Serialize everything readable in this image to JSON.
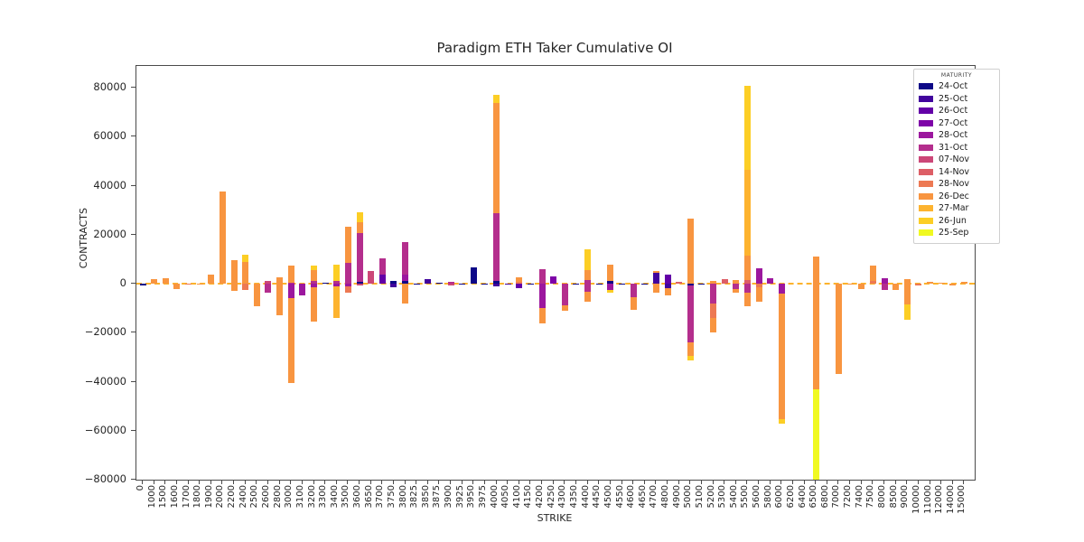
{
  "title": "Paradigm ETH Taker Cumulative OI",
  "axes": {
    "xlabel": "STRIKE",
    "ylabel": "CONTRACTS"
  },
  "legend": {
    "title": "MATURITY"
  },
  "chart_data": {
    "type": "bar",
    "stacked": true,
    "title": "Paradigm ETH Taker Cumulative OI",
    "xlabel": "STRIKE",
    "ylabel": "CONTRACTS",
    "ylim": [
      -80000,
      88000
    ],
    "yticks": [
      -80000,
      -60000,
      -40000,
      -20000,
      0,
      20000,
      40000,
      60000,
      80000
    ],
    "grid": false,
    "zero_line": {
      "style": "dashed",
      "color": "#fcb32c"
    },
    "legend_position": "upper right",
    "series_colors": {
      "24-Oct": "#0d0887",
      "25-Oct": "#41049d",
      "26-Oct": "#6300a7",
      "27-Oct": "#7e03a8",
      "28-Oct": "#9c179e",
      "31-Oct": "#b42e8d",
      "07-Nov": "#cc4778",
      "14-Nov": "#dd5e66",
      "28-Nov": "#ed7953",
      "26-Dec": "#f89540",
      "27-Mar": "#fdb32f",
      "26-Jun": "#fcce25",
      "25-Sep": "#f0f921"
    },
    "maturities": [
      "24-Oct",
      "25-Oct",
      "26-Oct",
      "27-Oct",
      "28-Oct",
      "31-Oct",
      "07-Nov",
      "14-Nov",
      "28-Nov",
      "26-Dec",
      "27-Mar",
      "26-Jun",
      "25-Sep"
    ],
    "categories": [
      "0",
      "1000",
      "1500",
      "1600",
      "1700",
      "1800",
      "1900",
      "2000",
      "2200",
      "2400",
      "2500",
      "2600",
      "2800",
      "3000",
      "3100",
      "3200",
      "3300",
      "3400",
      "3500",
      "3600",
      "3650",
      "3700",
      "3750",
      "3800",
      "3825",
      "3850",
      "3875",
      "3900",
      "3925",
      "3950",
      "3975",
      "4000",
      "4050",
      "4100",
      "4150",
      "4200",
      "4250",
      "4300",
      "4350",
      "4400",
      "4450",
      "4500",
      "4550",
      "4600",
      "4650",
      "4700",
      "4800",
      "4900",
      "5000",
      "5100",
      "5200",
      "5300",
      "5400",
      "5500",
      "5600",
      "5800",
      "6000",
      "6200",
      "6400",
      "6500",
      "6800",
      "7000",
      "7200",
      "7400",
      "7500",
      "8000",
      "8500",
      "9000",
      "10000",
      "11000",
      "12000",
      "14000",
      "15000"
    ],
    "bars": [
      {
        "strike": "0",
        "pos": [],
        "neg": [
          [
            "24-Oct",
            -600
          ]
        ]
      },
      {
        "strike": "1000",
        "pos": [
          [
            "26-Dec",
            1700
          ]
        ],
        "neg": []
      },
      {
        "strike": "1500",
        "pos": [
          [
            "26-Dec",
            2100
          ]
        ],
        "neg": []
      },
      {
        "strike": "1600",
        "pos": [],
        "neg": [
          [
            "26-Dec",
            -2300
          ]
        ]
      },
      {
        "strike": "1700",
        "pos": [],
        "neg": [
          [
            "28-Nov",
            -400
          ]
        ]
      },
      {
        "strike": "1800",
        "pos": [],
        "neg": [
          [
            "26-Dec",
            -400
          ]
        ]
      },
      {
        "strike": "1900",
        "pos": [
          [
            "26-Dec",
            3700
          ]
        ],
        "neg": []
      },
      {
        "strike": "2000",
        "pos": [
          [
            "26-Dec",
            37600
          ]
        ],
        "neg": []
      },
      {
        "strike": "2200",
        "pos": [
          [
            "26-Dec",
            9700
          ]
        ],
        "neg": [
          [
            "26-Dec",
            -3000
          ]
        ]
      },
      {
        "strike": "2400",
        "pos": [
          [
            "26-Dec",
            8800
          ],
          [
            "26-Jun",
            3000
          ]
        ],
        "neg": [
          [
            "28-Nov",
            -2600
          ]
        ]
      },
      {
        "strike": "2500",
        "pos": [],
        "neg": [
          [
            "26-Dec",
            -9200
          ]
        ]
      },
      {
        "strike": "2600",
        "pos": [
          [
            "07-Nov",
            1100
          ]
        ],
        "neg": [
          [
            "31-Oct",
            -3500
          ]
        ]
      },
      {
        "strike": "2800",
        "pos": [
          [
            "26-Dec",
            2700
          ]
        ],
        "neg": [
          [
            "26-Dec",
            -12900
          ]
        ]
      },
      {
        "strike": "3000",
        "pos": [
          [
            "31-Oct",
            400
          ],
          [
            "26-Dec",
            6900
          ]
        ],
        "neg": [
          [
            "28-Oct",
            -6000
          ],
          [
            "26-Dec",
            -34600
          ]
        ]
      },
      {
        "strike": "3100",
        "pos": [],
        "neg": [
          [
            "28-Oct",
            -4800
          ]
        ]
      },
      {
        "strike": "3200",
        "pos": [
          [
            "31-Oct",
            1000
          ],
          [
            "26-Dec",
            4400
          ],
          [
            "26-Jun",
            2000
          ]
        ],
        "neg": [
          [
            "28-Oct",
            -1500
          ],
          [
            "26-Dec",
            -14000
          ]
        ]
      },
      {
        "strike": "3300",
        "pos": [
          [
            "24-Oct",
            500
          ]
        ],
        "neg": []
      },
      {
        "strike": "3400",
        "pos": [
          [
            "31-Oct",
            1000
          ],
          [
            "26-Jun",
            6800
          ]
        ],
        "neg": [
          [
            "28-Oct",
            -1100
          ],
          [
            "27-Mar",
            -12800
          ]
        ]
      },
      {
        "strike": "3500",
        "pos": [
          [
            "31-Oct",
            8500
          ],
          [
            "26-Dec",
            14700
          ]
        ],
        "neg": [
          [
            "28-Oct",
            -1200
          ],
          [
            "28-Nov",
            -2400
          ]
        ]
      },
      {
        "strike": "3600",
        "pos": [
          [
            "24-Oct",
            800
          ],
          [
            "31-Oct",
            19800
          ],
          [
            "26-Dec",
            4400
          ],
          [
            "26-Jun",
            4000
          ]
        ],
        "neg": [
          [
            "07-Nov",
            -800
          ]
        ]
      },
      {
        "strike": "3650",
        "pos": [
          [
            "07-Nov",
            5200
          ]
        ],
        "neg": []
      },
      {
        "strike": "3700",
        "pos": [
          [
            "26-Oct",
            3700
          ],
          [
            "31-Oct",
            6700
          ]
        ],
        "neg": []
      },
      {
        "strike": "3750",
        "pos": [
          [
            "24-Oct",
            1000
          ]
        ],
        "neg": [
          [
            "25-Oct",
            -1500
          ]
        ]
      },
      {
        "strike": "3800",
        "pos": [
          [
            "24-Oct",
            1100
          ],
          [
            "28-Oct",
            2500
          ],
          [
            "31-Oct",
            13400
          ]
        ],
        "neg": [
          [
            "26-Dec",
            -8100
          ]
        ]
      },
      {
        "strike": "3825",
        "pos": [],
        "neg": [
          [
            "24-Oct",
            -500
          ]
        ]
      },
      {
        "strike": "3850",
        "pos": [
          [
            "25-Oct",
            1800
          ]
        ],
        "neg": []
      },
      {
        "strike": "3875",
        "pos": [
          [
            "24-Oct",
            400
          ]
        ],
        "neg": []
      },
      {
        "strike": "3900",
        "pos": [
          [
            "31-Oct",
            700
          ]
        ],
        "neg": [
          [
            "07-Nov",
            -700
          ]
        ]
      },
      {
        "strike": "3925",
        "pos": [],
        "neg": [
          [
            "24-Oct",
            -400
          ]
        ]
      },
      {
        "strike": "3950",
        "pos": [
          [
            "24-Oct",
            6600
          ]
        ],
        "neg": []
      },
      {
        "strike": "3975",
        "pos": [],
        "neg": [
          [
            "24-Oct",
            -500
          ]
        ]
      },
      {
        "strike": "4000",
        "pos": [
          [
            "24-Oct",
            1100
          ],
          [
            "31-Oct",
            27600
          ],
          [
            "26-Dec",
            44900
          ],
          [
            "26-Jun",
            3400
          ]
        ],
        "neg": [
          [
            "25-Oct",
            -1000
          ]
        ]
      },
      {
        "strike": "4050",
        "pos": [],
        "neg": [
          [
            "25-Oct",
            -500
          ]
        ]
      },
      {
        "strike": "4100",
        "pos": [
          [
            "28-Nov",
            800
          ],
          [
            "26-Dec",
            1700
          ]
        ],
        "neg": [
          [
            "26-Oct",
            -2000
          ]
        ]
      },
      {
        "strike": "4150",
        "pos": [],
        "neg": [
          [
            "24-Oct",
            -400
          ]
        ]
      },
      {
        "strike": "4200",
        "pos": [
          [
            "31-Oct",
            5900
          ]
        ],
        "neg": [
          [
            "28-Oct",
            -9900
          ],
          [
            "26-Dec",
            -6300
          ]
        ]
      },
      {
        "strike": "4250",
        "pos": [
          [
            "27-Oct",
            2900
          ]
        ],
        "neg": []
      },
      {
        "strike": "4300",
        "pos": [],
        "neg": [
          [
            "31-Oct",
            -8700
          ],
          [
            "26-Dec",
            -2400
          ]
        ]
      },
      {
        "strike": "4350",
        "pos": [],
        "neg": [
          [
            "24-Oct",
            -400
          ]
        ]
      },
      {
        "strike": "4400",
        "pos": [
          [
            "31-Oct",
            1500
          ],
          [
            "26-Dec",
            3900
          ],
          [
            "26-Jun",
            8600
          ]
        ],
        "neg": [
          [
            "31-Oct",
            -3200
          ],
          [
            "26-Dec",
            -4300
          ]
        ]
      },
      {
        "strike": "4450",
        "pos": [],
        "neg": [
          [
            "24-Oct",
            -400
          ]
        ]
      },
      {
        "strike": "4500",
        "pos": [
          [
            "24-Oct",
            1000
          ],
          [
            "26-Dec",
            6800
          ]
        ],
        "neg": [
          [
            "28-Oct",
            -2400
          ],
          [
            "26-Jun",
            -1400
          ]
        ]
      },
      {
        "strike": "4550",
        "pos": [],
        "neg": [
          [
            "24-Oct",
            -300
          ]
        ]
      },
      {
        "strike": "4600",
        "pos": [],
        "neg": [
          [
            "31-Oct",
            -5600
          ],
          [
            "26-Dec",
            -5000
          ]
        ]
      },
      {
        "strike": "4650",
        "pos": [],
        "neg": [
          [
            "24-Oct",
            -300
          ]
        ]
      },
      {
        "strike": "4700",
        "pos": [
          [
            "25-Oct",
            4300
          ],
          [
            "26-Dec",
            700
          ]
        ],
        "neg": [
          [
            "26-Dec",
            -3600
          ]
        ]
      },
      {
        "strike": "4800",
        "pos": [
          [
            "26-Oct",
            3600
          ]
        ],
        "neg": [
          [
            "25-Oct",
            -1900
          ],
          [
            "26-Dec",
            -2800
          ]
        ]
      },
      {
        "strike": "4900",
        "pos": [
          [
            "14-Nov",
            800
          ]
        ],
        "neg": []
      },
      {
        "strike": "5000",
        "pos": [
          [
            "26-Dec",
            26700
          ]
        ],
        "neg": [
          [
            "24-Oct",
            -800
          ],
          [
            "31-Oct",
            -23200
          ],
          [
            "26-Dec",
            -5600
          ],
          [
            "26-Jun",
            -1800
          ]
        ]
      },
      {
        "strike": "5100",
        "pos": [],
        "neg": [
          [
            "24-Oct",
            -400
          ]
        ]
      },
      {
        "strike": "5200",
        "pos": [
          [
            "26-Dec",
            1100
          ]
        ],
        "neg": [
          [
            "31-Oct",
            -8000
          ],
          [
            "28-Nov",
            -6000
          ],
          [
            "26-Dec",
            -6000
          ]
        ]
      },
      {
        "strike": "5300",
        "pos": [
          [
            "14-Nov",
            2000
          ]
        ],
        "neg": []
      },
      {
        "strike": "5400",
        "pos": [
          [
            "26-Dec",
            1400
          ]
        ],
        "neg": [
          [
            "31-Oct",
            -2300
          ],
          [
            "26-Dec",
            -1500
          ]
        ]
      },
      {
        "strike": "5500",
        "pos": [
          [
            "14-Nov",
            1500
          ],
          [
            "26-Dec",
            10000
          ],
          [
            "27-Mar",
            35000
          ],
          [
            "26-Jun",
            34400
          ]
        ],
        "neg": [
          [
            "31-Oct",
            -3700
          ],
          [
            "26-Dec",
            -5600
          ]
        ]
      },
      {
        "strike": "5600",
        "pos": [
          [
            "28-Oct",
            6300
          ]
        ],
        "neg": [
          [
            "28-Nov",
            -1500
          ],
          [
            "26-Dec",
            -6000
          ]
        ]
      },
      {
        "strike": "5800",
        "pos": [
          [
            "28-Oct",
            2300
          ]
        ],
        "neg": []
      },
      {
        "strike": "6000",
        "pos": [],
        "neg": [
          [
            "28-Oct",
            -4200
          ],
          [
            "26-Dec",
            -51200
          ],
          [
            "26-Jun",
            -1800
          ]
        ]
      },
      {
        "strike": "6200",
        "pos": [],
        "neg": []
      },
      {
        "strike": "6400",
        "pos": [],
        "neg": []
      },
      {
        "strike": "6500",
        "pos": [
          [
            "26-Dec",
            10900
          ]
        ],
        "neg": [
          [
            "26-Dec",
            -43100
          ],
          [
            "25-Sep",
            -37000
          ]
        ]
      },
      {
        "strike": "6800",
        "pos": [],
        "neg": []
      },
      {
        "strike": "7000",
        "pos": [],
        "neg": [
          [
            "26-Dec",
            -37000
          ]
        ]
      },
      {
        "strike": "7200",
        "pos": [],
        "neg": [
          [
            "26-Dec",
            -500
          ]
        ]
      },
      {
        "strike": "7400",
        "pos": [],
        "neg": [
          [
            "26-Dec",
            -2200
          ]
        ]
      },
      {
        "strike": "7500",
        "pos": [
          [
            "28-Nov",
            1100
          ],
          [
            "26-Dec",
            6200
          ]
        ],
        "neg": []
      },
      {
        "strike": "8000",
        "pos": [
          [
            "28-Oct",
            2300
          ]
        ],
        "neg": [
          [
            "31-Oct",
            -2600
          ]
        ]
      },
      {
        "strike": "8500",
        "pos": [],
        "neg": [
          [
            "26-Dec",
            -2400
          ]
        ]
      },
      {
        "strike": "9000",
        "pos": [
          [
            "26-Dec",
            1700
          ]
        ],
        "neg": [
          [
            "26-Dec",
            -8300
          ],
          [
            "26-Jun",
            -6500
          ]
        ]
      },
      {
        "strike": "10000",
        "pos": [],
        "neg": [
          [
            "28-Nov",
            -600
          ]
        ]
      },
      {
        "strike": "11000",
        "pos": [
          [
            "26-Dec",
            900
          ]
        ],
        "neg": []
      },
      {
        "strike": "12000",
        "pos": [
          [
            "26-Dec",
            400
          ]
        ],
        "neg": []
      },
      {
        "strike": "14000",
        "pos": [],
        "neg": [
          [
            "26-Dec",
            -700
          ]
        ]
      },
      {
        "strike": "15000",
        "pos": [
          [
            "26-Dec",
            600
          ]
        ],
        "neg": []
      }
    ]
  }
}
